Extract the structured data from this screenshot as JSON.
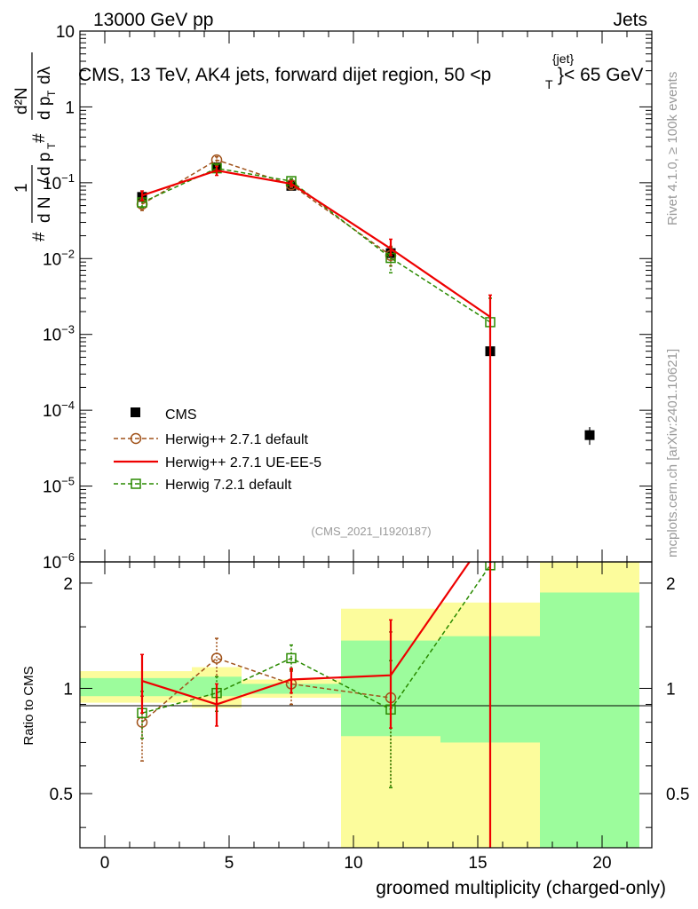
{
  "header": {
    "left": "13000 GeV pp",
    "right": "Jets",
    "title": "CMS, 13 TeV, AK4 jets, forward dijet region, 50 <",
    "title_p": "p",
    "title_sup": "{jet}",
    "title_sub": "T",
    "title_end": "}< 65 GeV",
    "analysis_tag": "(CMS_2021_I1920187)"
  },
  "side": {
    "rivet": "Rivet 4.1.0, ≥ 100k events",
    "mcplots": "mcplots.cern.ch [arXiv:2401.10621]"
  },
  "ylabel_main": {
    "hash1": "#",
    "hash2": "#",
    "one": "1",
    "d2n": "d²N",
    "dN": "d N",
    "slash": "/",
    "dpT": "d p",
    "T": "T",
    "denom": "d p",
    "denomT": "T",
    "dlambda": "dλ"
  },
  "ylabel_ratio": "Ratio to CMS",
  "xlabel": "groomed multiplicity (charged-only)",
  "colors": {
    "cms": "#000000",
    "h271": "#a0521a",
    "ueee5": "#ee0000",
    "h721": "#2a8a00",
    "band_inner": "#9cfc9c",
    "band_outer": "#fcfc9c"
  },
  "chart_data": {
    "type": "scatter",
    "title": "CMS, 13 TeV, AK4 jets, forward dijet region, 50 < pT{jet} < 65 GeV",
    "xlabel": "groomed multiplicity (charged-only)",
    "ylabel": "1/(dN/dpT) d2N/(dpT dlambda)",
    "xlim": [
      -1,
      22
    ],
    "ylim": [
      1e-06,
      10
    ],
    "yscale": "log",
    "xticks": [
      0,
      5,
      10,
      15,
      20
    ],
    "legend": {
      "placement": "middle-left",
      "entries": [
        "CMS",
        "Herwig++ 2.7.1 default",
        "Herwig++ 2.7.1 UE-EE-5",
        "Herwig 7.2.1 default"
      ]
    },
    "series": [
      {
        "name": "CMS",
        "style": "square-marker",
        "points": [
          {
            "x": 1.5,
            "y": 0.065,
            "lo": 0.058,
            "hi": 0.072
          },
          {
            "x": 4.5,
            "y": 0.16,
            "lo": 0.15,
            "hi": 0.17
          },
          {
            "x": 7.5,
            "y": 0.091,
            "lo": 0.087,
            "hi": 0.096
          },
          {
            "x": 11.5,
            "y": 0.0118,
            "lo": 0.0104,
            "hi": 0.0133
          },
          {
            "x": 15.5,
            "y": 0.0006,
            "lo": 0.0004,
            "hi": 0.0008
          },
          {
            "x": 19.5,
            "y": 4.7e-05,
            "lo": 3.5e-05,
            "hi": 6e-05
          }
        ]
      },
      {
        "name": "Herwig++ 2.7.1 default",
        "style": "dashed-circle",
        "points": [
          {
            "x": 1.5,
            "y": 0.052,
            "lo": 0.043,
            "hi": 0.061
          },
          {
            "x": 4.5,
            "y": 0.2,
            "lo": 0.18,
            "hi": 0.22
          },
          {
            "x": 7.5,
            "y": 0.094,
            "lo": 0.087,
            "hi": 0.101
          },
          {
            "x": 11.5,
            "y": 0.011,
            "lo": 0.008,
            "hi": 0.0145
          }
        ]
      },
      {
        "name": "Herwig++ 2.7.1 UE-EE-5",
        "style": "solid-line",
        "points": [
          {
            "x": 1.5,
            "y": 0.068,
            "lo": 0.058,
            "hi": 0.078
          },
          {
            "x": 4.5,
            "y": 0.145,
            "lo": 0.125,
            "hi": 0.165
          },
          {
            "x": 7.5,
            "y": 0.097,
            "lo": 0.09,
            "hi": 0.105
          },
          {
            "x": 11.5,
            "y": 0.0135,
            "lo": 0.011,
            "hi": 0.018
          },
          {
            "x": 15.5,
            "y": 0.0017,
            "lo": 1e-07,
            "hi": 0.0033
          }
        ]
      },
      {
        "name": "Herwig 7.2.1 default",
        "style": "dashed-square",
        "points": [
          {
            "x": 1.5,
            "y": 0.055,
            "lo": 0.047,
            "hi": 0.063
          },
          {
            "x": 4.5,
            "y": 0.155,
            "lo": 0.14,
            "hi": 0.17
          },
          {
            "x": 7.5,
            "y": 0.105,
            "lo": 0.097,
            "hi": 0.113
          },
          {
            "x": 11.5,
            "y": 0.0102,
            "lo": 0.0065,
            "hi": 0.014
          },
          {
            "x": 15.5,
            "y": 0.00145,
            "lo": 1e-07,
            "hi": 0.003
          }
        ]
      }
    ],
    "ratio": {
      "ylabel": "Ratio to CMS",
      "ylim": [
        0.35,
        2.3
      ],
      "yscale": "log",
      "yticks": [
        0.5,
        1,
        2
      ],
      "bands": [
        {
          "x0": -1,
          "x1": 3.5,
          "in_lo": 0.95,
          "in_hi": 1.07,
          "out_lo": 0.91,
          "out_hi": 1.12
        },
        {
          "x0": 3.5,
          "x1": 5.5,
          "in_lo": 0.95,
          "in_hi": 1.08,
          "out_lo": 0.88,
          "out_hi": 1.15
        },
        {
          "x0": 5.5,
          "x1": 9.5,
          "in_lo": 0.965,
          "in_hi": 1.03,
          "out_lo": 0.94,
          "out_hi": 1.06
        },
        {
          "x0": 9.5,
          "x1": 13.5,
          "in_lo": 0.73,
          "in_hi": 1.37,
          "out_lo": 0.35,
          "out_hi": 1.69
        },
        {
          "x0": 13.5,
          "x1": 17.5,
          "in_lo": 0.7,
          "in_hi": 1.41,
          "out_lo": 0.35,
          "out_hi": 1.76
        },
        {
          "x0": 17.5,
          "x1": 21.5,
          "in_lo": 0.35,
          "in_hi": 1.88,
          "out_lo": 0.35,
          "out_hi": 2.3
        }
      ],
      "series": [
        {
          "name": "Herwig++ 2.7.1 default",
          "style": "dashed-circle",
          "points": [
            {
              "x": 1.5,
              "y": 0.8,
              "lo": 0.62,
              "hi": 0.95
            },
            {
              "x": 4.5,
              "y": 1.22,
              "lo": 1.08,
              "hi": 1.39
            },
            {
              "x": 7.5,
              "y": 1.03,
              "lo": 0.9,
              "hi": 1.12
            },
            {
              "x": 11.5,
              "y": 0.94,
              "lo": 0.52,
              "hi": 1.45
            }
          ]
        },
        {
          "name": "Herwig++ 2.7.1 UE-EE-5",
          "style": "solid-line",
          "points": [
            {
              "x": 1.5,
              "y": 1.05,
              "lo": 0.85,
              "hi": 1.25
            },
            {
              "x": 4.5,
              "y": 0.9,
              "lo": 0.78,
              "hi": 1.03
            },
            {
              "x": 7.5,
              "y": 1.06,
              "lo": 0.97,
              "hi": 1.14
            },
            {
              "x": 11.5,
              "y": 1.09,
              "lo": 0.77,
              "hi": 1.57
            },
            {
              "x": 15.5,
              "y": 2.8,
              "lo": 0.2,
              "hi": 3.0
            }
          ]
        },
        {
          "name": "Herwig 7.2.1 default",
          "style": "dashed-square",
          "points": [
            {
              "x": 1.5,
              "y": 0.85,
              "lo": 0.72,
              "hi": 0.98
            },
            {
              "x": 4.5,
              "y": 0.97,
              "lo": 0.86,
              "hi": 1.08
            },
            {
              "x": 7.5,
              "y": 1.22,
              "lo": 1.13,
              "hi": 1.33
            },
            {
              "x": 11.5,
              "y": 0.87,
              "lo": 0.52,
              "hi": 1.2
            },
            {
              "x": 15.5,
              "y": 2.25,
              "lo": 0.2,
              "hi": 2.3
            }
          ]
        }
      ]
    }
  }
}
